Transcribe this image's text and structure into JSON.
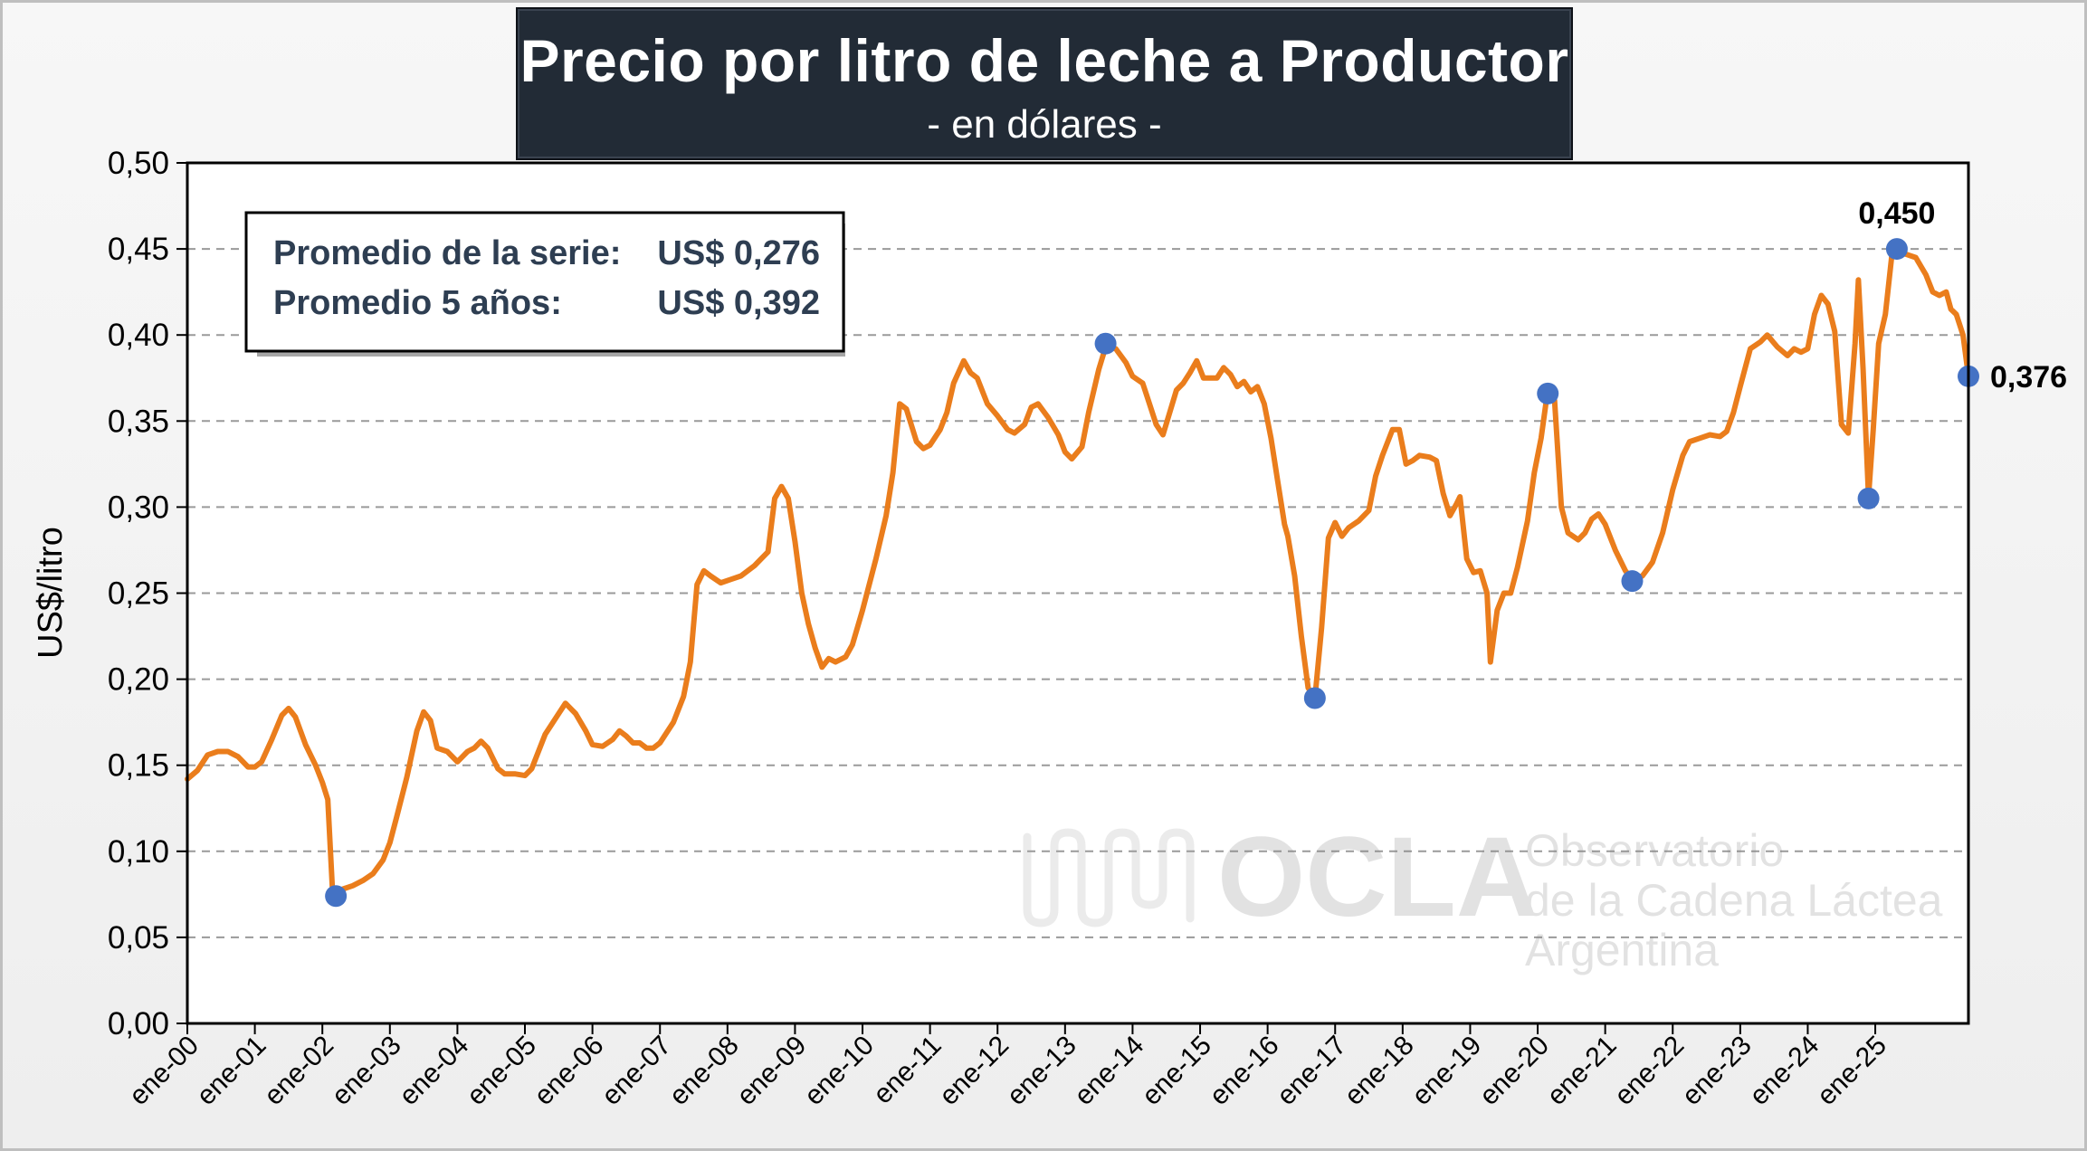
{
  "chart_data": {
    "type": "line",
    "title": "Precio por litro de leche a Productor",
    "subtitle": "- en dólares -",
    "xlabel": "",
    "ylabel": "US$/litro",
    "ylim": [
      0,
      0.5
    ],
    "yticks": [
      "0,00",
      "0,05",
      "0,10",
      "0,15",
      "0,20",
      "0,25",
      "0,30",
      "0,35",
      "0,40",
      "0,45",
      "0,50"
    ],
    "xticks": [
      "ene-00",
      "ene-01",
      "ene-02",
      "ene-03",
      "ene-04",
      "ene-05",
      "ene-06",
      "ene-07",
      "ene-08",
      "ene-09",
      "ene-10",
      "ene-11",
      "ene-12",
      "ene-13",
      "ene-14",
      "ene-15",
      "ene-16",
      "ene-17",
      "ene-18",
      "ene-19",
      "ene-20",
      "ene-21",
      "ene-22",
      "ene-23",
      "ene-24",
      "ene-25"
    ],
    "grid": "horizontal dashed",
    "line_color": "#ea7d1c",
    "marker_color": "#4472c4",
    "series": [
      {
        "points": [
          [
            2000.0,
            0.142
          ],
          [
            2000.15,
            0.147
          ],
          [
            2000.3,
            0.156
          ],
          [
            2000.45,
            0.158
          ],
          [
            2000.6,
            0.158
          ],
          [
            2000.75,
            0.155
          ],
          [
            2000.9,
            0.149
          ],
          [
            2001.0,
            0.149
          ],
          [
            2001.1,
            0.152
          ],
          [
            2001.25,
            0.165
          ],
          [
            2001.4,
            0.179
          ],
          [
            2001.5,
            0.183
          ],
          [
            2001.6,
            0.178
          ],
          [
            2001.75,
            0.162
          ],
          [
            2001.9,
            0.15
          ],
          [
            2002.0,
            0.14
          ],
          [
            2002.08,
            0.13
          ],
          [
            2002.15,
            0.077
          ],
          [
            2002.2,
            0.074
          ],
          [
            2002.3,
            0.078
          ],
          [
            2002.45,
            0.08
          ],
          [
            2002.6,
            0.083
          ],
          [
            2002.75,
            0.087
          ],
          [
            2002.9,
            0.095
          ],
          [
            2003.0,
            0.105
          ],
          [
            2003.1,
            0.12
          ],
          [
            2003.25,
            0.143
          ],
          [
            2003.4,
            0.17
          ],
          [
            2003.5,
            0.181
          ],
          [
            2003.6,
            0.176
          ],
          [
            2003.7,
            0.16
          ],
          [
            2003.85,
            0.158
          ],
          [
            2004.0,
            0.152
          ],
          [
            2004.15,
            0.158
          ],
          [
            2004.25,
            0.16
          ],
          [
            2004.35,
            0.164
          ],
          [
            2004.45,
            0.16
          ],
          [
            2004.6,
            0.148
          ],
          [
            2004.7,
            0.145
          ],
          [
            2004.85,
            0.145
          ],
          [
            2005.0,
            0.144
          ],
          [
            2005.1,
            0.148
          ],
          [
            2005.3,
            0.168
          ],
          [
            2005.5,
            0.18
          ],
          [
            2005.6,
            0.186
          ],
          [
            2005.75,
            0.18
          ],
          [
            2005.9,
            0.17
          ],
          [
            2006.0,
            0.162
          ],
          [
            2006.15,
            0.161
          ],
          [
            2006.3,
            0.165
          ],
          [
            2006.4,
            0.17
          ],
          [
            2006.5,
            0.167
          ],
          [
            2006.6,
            0.163
          ],
          [
            2006.7,
            0.163
          ],
          [
            2006.8,
            0.16
          ],
          [
            2006.9,
            0.16
          ],
          [
            2007.0,
            0.163
          ],
          [
            2007.2,
            0.175
          ],
          [
            2007.35,
            0.19
          ],
          [
            2007.45,
            0.21
          ],
          [
            2007.55,
            0.255
          ],
          [
            2007.65,
            0.263
          ],
          [
            2007.75,
            0.26
          ],
          [
            2007.9,
            0.256
          ],
          [
            2008.05,
            0.258
          ],
          [
            2008.2,
            0.26
          ],
          [
            2008.4,
            0.266
          ],
          [
            2008.5,
            0.27
          ],
          [
            2008.6,
            0.274
          ],
          [
            2008.7,
            0.305
          ],
          [
            2008.8,
            0.312
          ],
          [
            2008.9,
            0.305
          ],
          [
            2009.0,
            0.28
          ],
          [
            2009.1,
            0.25
          ],
          [
            2009.2,
            0.232
          ],
          [
            2009.3,
            0.218
          ],
          [
            2009.4,
            0.207
          ],
          [
            2009.5,
            0.212
          ],
          [
            2009.6,
            0.21
          ],
          [
            2009.75,
            0.213
          ],
          [
            2009.85,
            0.22
          ],
          [
            2010.0,
            0.24
          ],
          [
            2010.2,
            0.27
          ],
          [
            2010.35,
            0.295
          ],
          [
            2010.45,
            0.32
          ],
          [
            2010.55,
            0.36
          ],
          [
            2010.65,
            0.357
          ],
          [
            2010.8,
            0.338
          ],
          [
            2010.9,
            0.334
          ],
          [
            2011.0,
            0.336
          ],
          [
            2011.15,
            0.345
          ],
          [
            2011.25,
            0.355
          ],
          [
            2011.35,
            0.372
          ],
          [
            2011.5,
            0.385
          ],
          [
            2011.6,
            0.378
          ],
          [
            2011.7,
            0.375
          ],
          [
            2011.85,
            0.36
          ],
          [
            2012.0,
            0.353
          ],
          [
            2012.15,
            0.345
          ],
          [
            2012.25,
            0.343
          ],
          [
            2012.4,
            0.348
          ],
          [
            2012.5,
            0.358
          ],
          [
            2012.6,
            0.36
          ],
          [
            2012.75,
            0.352
          ],
          [
            2012.9,
            0.342
          ],
          [
            2013.0,
            0.332
          ],
          [
            2013.1,
            0.328
          ],
          [
            2013.25,
            0.335
          ],
          [
            2013.35,
            0.355
          ],
          [
            2013.5,
            0.38
          ],
          [
            2013.6,
            0.393
          ],
          [
            2013.75,
            0.392
          ],
          [
            2013.9,
            0.384
          ],
          [
            2014.0,
            0.376
          ],
          [
            2014.15,
            0.372
          ],
          [
            2014.25,
            0.36
          ],
          [
            2014.35,
            0.348
          ],
          [
            2014.45,
            0.342
          ],
          [
            2014.55,
            0.355
          ],
          [
            2014.65,
            0.368
          ],
          [
            2014.75,
            0.372
          ],
          [
            2014.85,
            0.378
          ],
          [
            2014.95,
            0.385
          ],
          [
            2015.05,
            0.375
          ],
          [
            2015.15,
            0.375
          ],
          [
            2015.25,
            0.375
          ],
          [
            2015.35,
            0.381
          ],
          [
            2015.45,
            0.377
          ],
          [
            2015.55,
            0.37
          ],
          [
            2015.65,
            0.373
          ],
          [
            2015.75,
            0.367
          ],
          [
            2015.85,
            0.37
          ],
          [
            2015.95,
            0.36
          ],
          [
            2016.05,
            0.34
          ],
          [
            2016.15,
            0.315
          ],
          [
            2016.25,
            0.29
          ],
          [
            2016.3,
            0.283
          ],
          [
            2016.4,
            0.26
          ],
          [
            2016.5,
            0.225
          ],
          [
            2016.6,
            0.195
          ],
          [
            2016.7,
            0.189
          ],
          [
            2016.8,
            0.23
          ],
          [
            2016.9,
            0.282
          ],
          [
            2017.0,
            0.291
          ],
          [
            2017.1,
            0.283
          ],
          [
            2017.2,
            0.288
          ],
          [
            2017.35,
            0.292
          ],
          [
            2017.5,
            0.298
          ],
          [
            2017.6,
            0.318
          ],
          [
            2017.7,
            0.33
          ],
          [
            2017.85,
            0.345
          ],
          [
            2017.95,
            0.345
          ],
          [
            2018.05,
            0.325
          ],
          [
            2018.15,
            0.327
          ],
          [
            2018.25,
            0.33
          ],
          [
            2018.4,
            0.329
          ],
          [
            2018.5,
            0.327
          ],
          [
            2018.6,
            0.308
          ],
          [
            2018.7,
            0.295
          ],
          [
            2018.8,
            0.302
          ],
          [
            2018.85,
            0.306
          ],
          [
            2018.95,
            0.27
          ],
          [
            2019.05,
            0.262
          ],
          [
            2019.15,
            0.263
          ],
          [
            2019.25,
            0.25
          ],
          [
            2019.3,
            0.21
          ],
          [
            2019.4,
            0.24
          ],
          [
            2019.5,
            0.25
          ],
          [
            2019.6,
            0.25
          ],
          [
            2019.7,
            0.265
          ],
          [
            2019.85,
            0.292
          ],
          [
            2019.95,
            0.32
          ],
          [
            2020.05,
            0.34
          ],
          [
            2020.15,
            0.368
          ],
          [
            2020.25,
            0.362
          ],
          [
            2020.35,
            0.3
          ],
          [
            2020.45,
            0.285
          ],
          [
            2020.6,
            0.281
          ],
          [
            2020.7,
            0.285
          ],
          [
            2020.8,
            0.293
          ],
          [
            2020.9,
            0.296
          ],
          [
            2021.0,
            0.29
          ],
          [
            2021.15,
            0.275
          ],
          [
            2021.3,
            0.263
          ],
          [
            2021.4,
            0.258
          ],
          [
            2021.55,
            0.26
          ],
          [
            2021.7,
            0.268
          ],
          [
            2021.85,
            0.285
          ],
          [
            2022.0,
            0.31
          ],
          [
            2022.15,
            0.33
          ],
          [
            2022.25,
            0.338
          ],
          [
            2022.4,
            0.34
          ],
          [
            2022.55,
            0.342
          ],
          [
            2022.7,
            0.341
          ],
          [
            2022.8,
            0.344
          ],
          [
            2022.9,
            0.355
          ],
          [
            2023.0,
            0.37
          ],
          [
            2023.15,
            0.392
          ],
          [
            2023.3,
            0.396
          ],
          [
            2023.4,
            0.4
          ],
          [
            2023.55,
            0.393
          ],
          [
            2023.7,
            0.388
          ],
          [
            2023.8,
            0.392
          ],
          [
            2023.9,
            0.39
          ],
          [
            2024.0,
            0.392
          ],
          [
            2024.1,
            0.412
          ],
          [
            2024.2,
            0.423
          ],
          [
            2024.3,
            0.418
          ],
          [
            2024.4,
            0.402
          ],
          [
            2024.5,
            0.348
          ],
          [
            2024.6,
            0.343
          ],
          [
            2024.7,
            0.395
          ],
          [
            2024.75,
            0.432
          ],
          [
            2024.82,
            0.38
          ],
          [
            2024.9,
            0.306
          ],
          [
            2024.97,
            0.345
          ],
          [
            2025.05,
            0.395
          ],
          [
            2025.15,
            0.412
          ],
          [
            2025.25,
            0.448
          ],
          [
            2025.35,
            0.448
          ],
          [
            2025.45,
            0.447
          ],
          [
            2025.6,
            0.445
          ],
          [
            2025.75,
            0.435
          ],
          [
            2025.85,
            0.425
          ],
          [
            2025.95,
            0.423
          ],
          [
            2026.05,
            0.425
          ],
          [
            2026.12,
            0.415
          ],
          [
            2026.2,
            0.412
          ],
          [
            2026.3,
            0.4
          ],
          [
            2026.38,
            0.376
          ]
        ]
      }
    ],
    "markers": [
      {
        "x": 2002.2,
        "y": 0.074
      },
      {
        "x": 2013.6,
        "y": 0.395
      },
      {
        "x": 2016.7,
        "y": 0.189
      },
      {
        "x": 2020.15,
        "y": 0.366
      },
      {
        "x": 2021.4,
        "y": 0.257
      },
      {
        "x": 2024.9,
        "y": 0.305
      },
      {
        "x": 2025.32,
        "y": 0.45,
        "label": "0,450"
      },
      {
        "x": 2026.38,
        "y": 0.376,
        "label": "0,376"
      }
    ],
    "annotation": {
      "line1_label": "Promedio de la serie:",
      "line1_value": "US$ 0,276",
      "line2_label": "Promedio 5 años:",
      "line2_value": "US$ 0,392"
    },
    "watermark": {
      "logo": "OCLA",
      "line1": "Observatorio",
      "line2": "de la Cadena Láctea",
      "line3": "Argentina"
    }
  }
}
